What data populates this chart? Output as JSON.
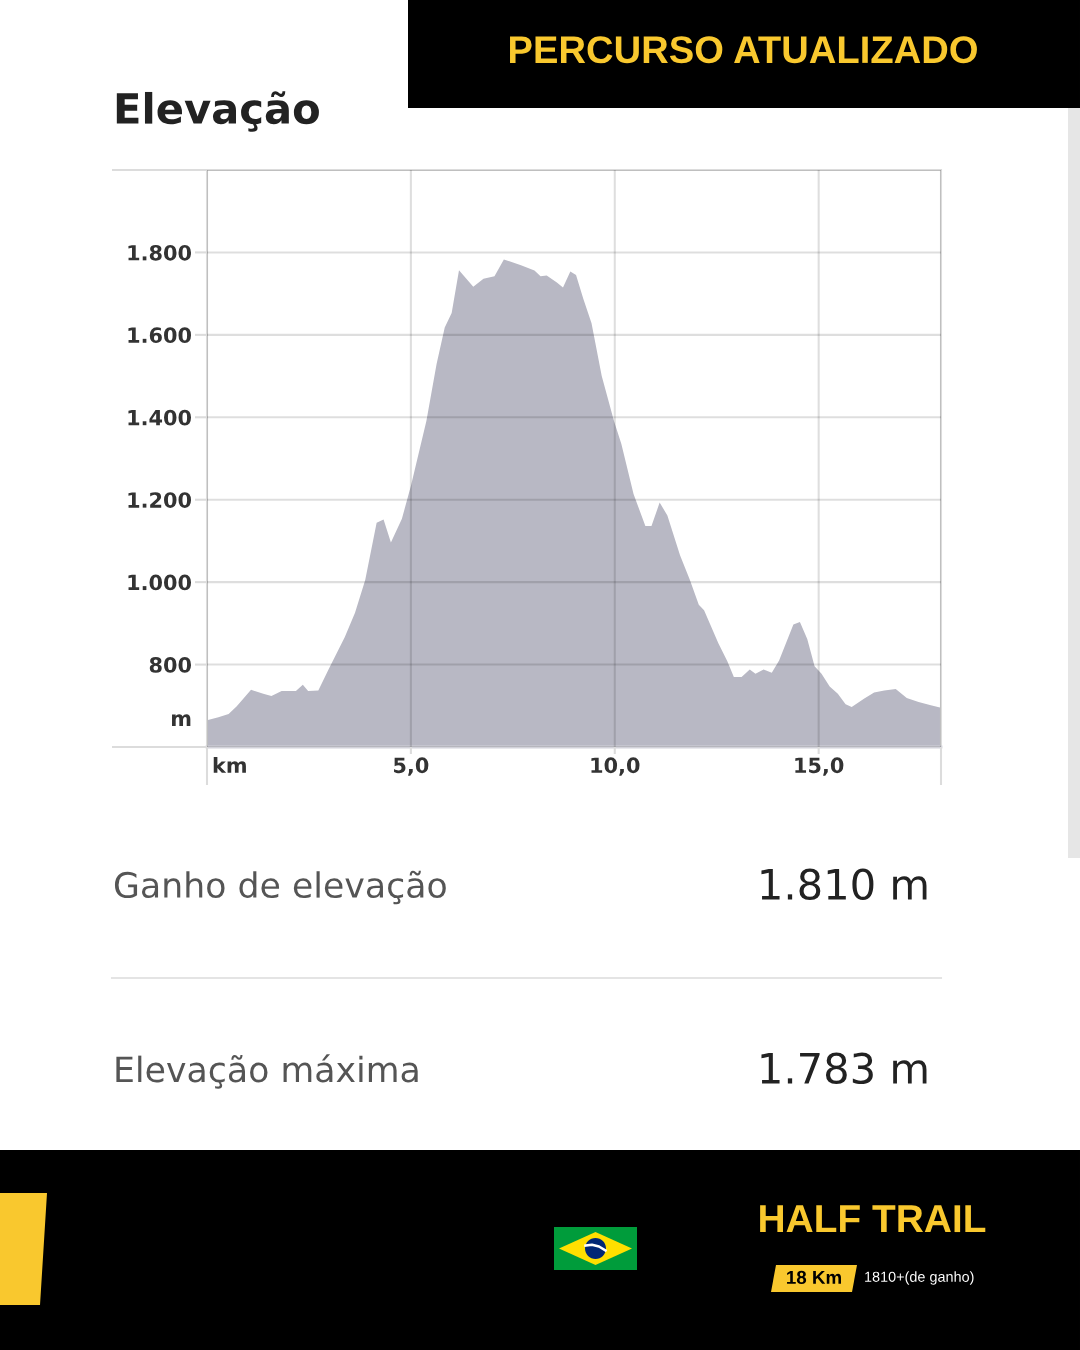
{
  "chart_data": {
    "type": "area",
    "title": "Elevação",
    "xlabel": "km",
    "ylabel": "m",
    "color": "#b8b8c4",
    "x": [
      0,
      0.28,
      0.53,
      0.73,
      1.08,
      1.38,
      1.58,
      1.83,
      2.18,
      2.35,
      2.48,
      2.73,
      2.98,
      3.38,
      3.63,
      3.88,
      4.16,
      4.33,
      4.51,
      4.78,
      5.0,
      5.38,
      5.63,
      5.83,
      6.0,
      6.18,
      6.53,
      6.78,
      7.05,
      7.28,
      7.7,
      8.03,
      8.18,
      8.33,
      8.58,
      8.73,
      8.91,
      9.05,
      9.23,
      9.43,
      9.68,
      9.98,
      10.16,
      10.46,
      10.75,
      10.9,
      11.1,
      11.29,
      11.6,
      11.84,
      12.06,
      12.19,
      12.54,
      12.76,
      12.92,
      13.11,
      13.31,
      13.45,
      13.65,
      13.85,
      14.03,
      14.38,
      14.54,
      14.72,
      14.9,
      15.07,
      15.27,
      15.47,
      15.66,
      15.81,
      16.11,
      16.36,
      16.61,
      16.89,
      17.16,
      17.45,
      17.75,
      18.0
    ],
    "values": [
      665,
      672,
      680,
      699,
      739,
      729,
      724,
      736,
      736,
      751,
      736,
      737,
      788,
      867,
      926,
      1005,
      1144,
      1152,
      1096,
      1154,
      1233,
      1391,
      1529,
      1618,
      1653,
      1757,
      1717,
      1736,
      1742,
      1783,
      1769,
      1756,
      1742,
      1744,
      1727,
      1715,
      1754,
      1745,
      1687,
      1628,
      1500,
      1391,
      1336,
      1214,
      1136,
      1136,
      1193,
      1162,
      1065,
      1006,
      945,
      932,
      852,
      808,
      770,
      770,
      788,
      778,
      788,
      780,
      810,
      897,
      903,
      862,
      796,
      778,
      747,
      729,
      704,
      697,
      717,
      732,
      737,
      741,
      719,
      709,
      701,
      695
    ],
    "xlim": [
      0,
      18
    ],
    "ylim": [
      600,
      2000
    ],
    "xticks": [
      {
        "value": 0,
        "label": null
      },
      {
        "value": 5,
        "label": "5,0"
      },
      {
        "value": 10,
        "label": "10,0"
      },
      {
        "value": 15,
        "label": "15,0"
      },
      {
        "value": 18,
        "label": null
      }
    ],
    "yticks": [
      {
        "value": 600,
        "label": null
      },
      800,
      {
        "value": 1000,
        "label": "1.000"
      },
      {
        "value": 1200,
        "label": "1.200"
      },
      {
        "value": 1400,
        "label": "1.400"
      },
      {
        "value": 1600,
        "label": "1.600"
      },
      {
        "value": 1800,
        "label": "1.800"
      },
      {
        "value": 2000,
        "label": null
      }
    ],
    "grid": true,
    "annotations": [
      "PERCURSO ATUALIZADO",
      "Ganho de elevação",
      "1.810 m",
      "Elevação máxima",
      "1.783 m",
      "HALF TRAIL",
      "18 Km",
      "1810+(de ganho)"
    ]
  }
}
